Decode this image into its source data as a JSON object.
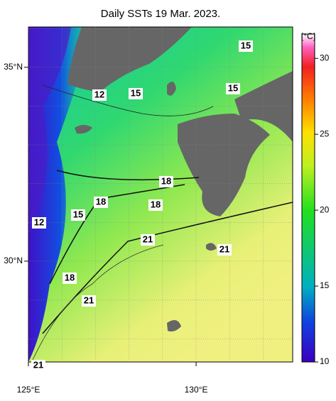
{
  "title": "Daily SSTs 19 Mar. 2023.",
  "map": {
    "xlim": [
      125,
      132.88
    ],
    "ylim": [
      27.4,
      36.04
    ],
    "x_ticks": [
      {
        "value": 125,
        "label": "125°E"
      },
      {
        "value": 130,
        "label": "130°E"
      }
    ],
    "y_ticks": [
      {
        "value": 35,
        "label": "35°N"
      },
      {
        "value": 30,
        "label": "30°N"
      }
    ]
  },
  "colorbar": {
    "unit": "[°C]",
    "lim": [
      10,
      31.6
    ],
    "ticks": [
      10,
      15,
      20,
      25,
      30
    ]
  },
  "contour_labels": [
    15,
    15,
    12,
    15,
    18,
    18,
    18,
    15,
    12,
    21,
    21,
    18,
    21,
    21
  ]
}
